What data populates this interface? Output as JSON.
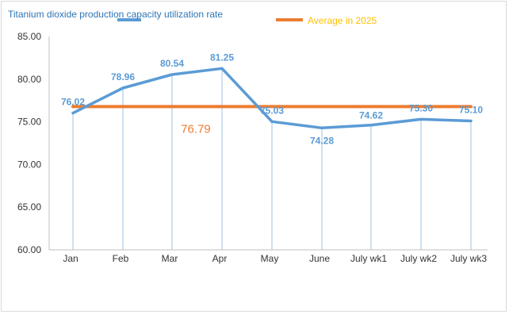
{
  "chart_data": {
    "type": "line",
    "categories": [
      "Jan",
      "Feb",
      "Mar",
      "Apr",
      "May",
      "June",
      "July wk1",
      "July wk2",
      "July wk3"
    ],
    "series": [
      {
        "name": "Titanium dioxide production capacity utilization rate",
        "values": [
          76.02,
          78.96,
          80.54,
          81.25,
          75.03,
          74.28,
          74.62,
          75.3,
          75.1
        ],
        "labels": [
          "76.02",
          "78.96",
          "80.54",
          "81.25",
          "75.03",
          "74.28",
          "74.62",
          "75.30",
          "75.10"
        ],
        "color": "#5b9bd5"
      },
      {
        "name": "Average in 2025",
        "values": [
          76.79,
          76.79,
          76.79,
          76.79,
          76.79,
          76.79,
          76.79,
          76.79,
          76.79
        ],
        "color": "#ed7d31",
        "legend_text_color": "#ffc000"
      }
    ],
    "average_label": "76.79",
    "y_ticks": [
      "60.00",
      "65.00",
      "70.00",
      "75.00",
      "80.00",
      "85.00"
    ],
    "ylim": [
      60,
      85
    ],
    "legend_position": "top",
    "grid": false,
    "drop_lines": true
  }
}
